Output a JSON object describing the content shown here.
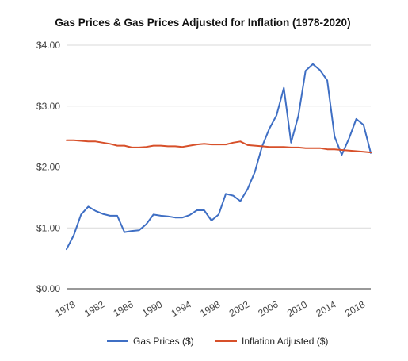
{
  "chart_data": {
    "type": "line",
    "title": "Gas Prices & Gas Prices Adjusted for Inflation (1978-2020)",
    "xlabel": "",
    "ylabel": "",
    "xlim": [
      1978,
      2020
    ],
    "ylim": [
      0,
      4
    ],
    "x_ticks": [
      "1978",
      "1982",
      "1986",
      "1990",
      "1994",
      "1998",
      "2002",
      "2006",
      "2010",
      "2014",
      "2018"
    ],
    "y_ticks": [
      "$0.00",
      "$1.00",
      "$2.00",
      "$3.00",
      "$4.00"
    ],
    "grid": true,
    "legend_position": "bottom",
    "x": [
      1978,
      1979,
      1980,
      1981,
      1982,
      1983,
      1984,
      1985,
      1986,
      1987,
      1988,
      1989,
      1990,
      1991,
      1992,
      1993,
      1994,
      1995,
      1996,
      1997,
      1998,
      1999,
      2000,
      2001,
      2002,
      2003,
      2004,
      2005,
      2006,
      2007,
      2008,
      2009,
      2010,
      2011,
      2012,
      2013,
      2014,
      2015,
      2016,
      2017,
      2018,
      2019,
      2020
    ],
    "series": [
      {
        "name": "Gas Prices ($)",
        "color": "#3f6fc4",
        "values": [
          0.65,
          0.88,
          1.22,
          1.35,
          1.28,
          1.23,
          1.2,
          1.2,
          0.93,
          0.95,
          0.96,
          1.06,
          1.22,
          1.2,
          1.19,
          1.17,
          1.17,
          1.21,
          1.29,
          1.29,
          1.12,
          1.22,
          1.56,
          1.53,
          1.44,
          1.64,
          1.92,
          2.34,
          2.63,
          2.85,
          3.3,
          2.4,
          2.84,
          3.58,
          3.69,
          3.59,
          3.42,
          2.5,
          2.2,
          2.47,
          2.79,
          2.69,
          2.23
        ]
      },
      {
        "name": "Inflation Adjusted ($)",
        "color": "#d7502a",
        "values": [
          2.44,
          2.44,
          2.43,
          2.42,
          2.42,
          2.4,
          2.38,
          2.35,
          2.35,
          2.32,
          2.32,
          2.33,
          2.35,
          2.35,
          2.34,
          2.34,
          2.33,
          2.35,
          2.37,
          2.38,
          2.37,
          2.37,
          2.37,
          2.4,
          2.42,
          2.36,
          2.35,
          2.34,
          2.33,
          2.33,
          2.33,
          2.32,
          2.32,
          2.31,
          2.31,
          2.31,
          2.29,
          2.29,
          2.28,
          2.27,
          2.26,
          2.25,
          2.24
        ]
      }
    ]
  }
}
